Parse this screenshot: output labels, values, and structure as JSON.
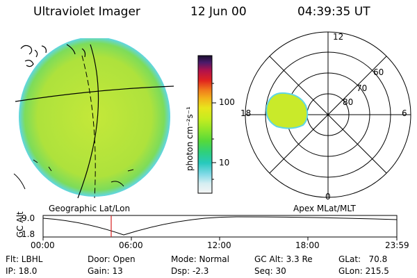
{
  "header": {
    "instrument": "Ultraviolet Imager",
    "date": "12 Jun 00",
    "time": "04:39:35 UT"
  },
  "colorbar": {
    "unit_label": "photon cm⁻²s⁻¹",
    "ticks": [
      "100",
      "10"
    ],
    "colors": [
      "#1a0f2e",
      "#4a1a6a",
      "#b3124a",
      "#e0231f",
      "#f07a1c",
      "#f2b21b",
      "#e8e61c",
      "#c6ec1f",
      "#8fe52a",
      "#56d93a",
      "#2fd07a",
      "#27c9bd",
      "#7fd9e6",
      "#d6eef2",
      "#f5f5f5"
    ]
  },
  "left_panel": {
    "caption": "Geographic Lat/Lon",
    "image_main_color": "#b8e63a",
    "image_edge_color": "#5fd6e6"
  },
  "polar_plot": {
    "caption": "Apex MLat/MLT",
    "mlt_labels": [
      "12",
      "18",
      "6",
      "0"
    ],
    "mlat_labels": [
      "60",
      "70",
      "80"
    ],
    "oval_color": "#c9ea2a"
  },
  "timeline": {
    "ylabel": "GC Alt",
    "yticks": [
      "9.0",
      "1.8"
    ],
    "xticks": [
      "00:00",
      "06:00",
      "12:00",
      "18:00",
      "23:59"
    ],
    "current_marker_color": "#d42020"
  },
  "info": {
    "flt": "Flt: LBHL",
    "ip": "IP: 18.0",
    "door": "Door: Open",
    "gain": "Gain: 13",
    "mode": "Mode: Normal",
    "dsp": "Dsp:    -2.3",
    "gcalt": "GC Alt: 3.3 Re",
    "seq": "Seq: 30",
    "glat": "GLat:   70.8",
    "glon": "GLon: 215.5"
  }
}
